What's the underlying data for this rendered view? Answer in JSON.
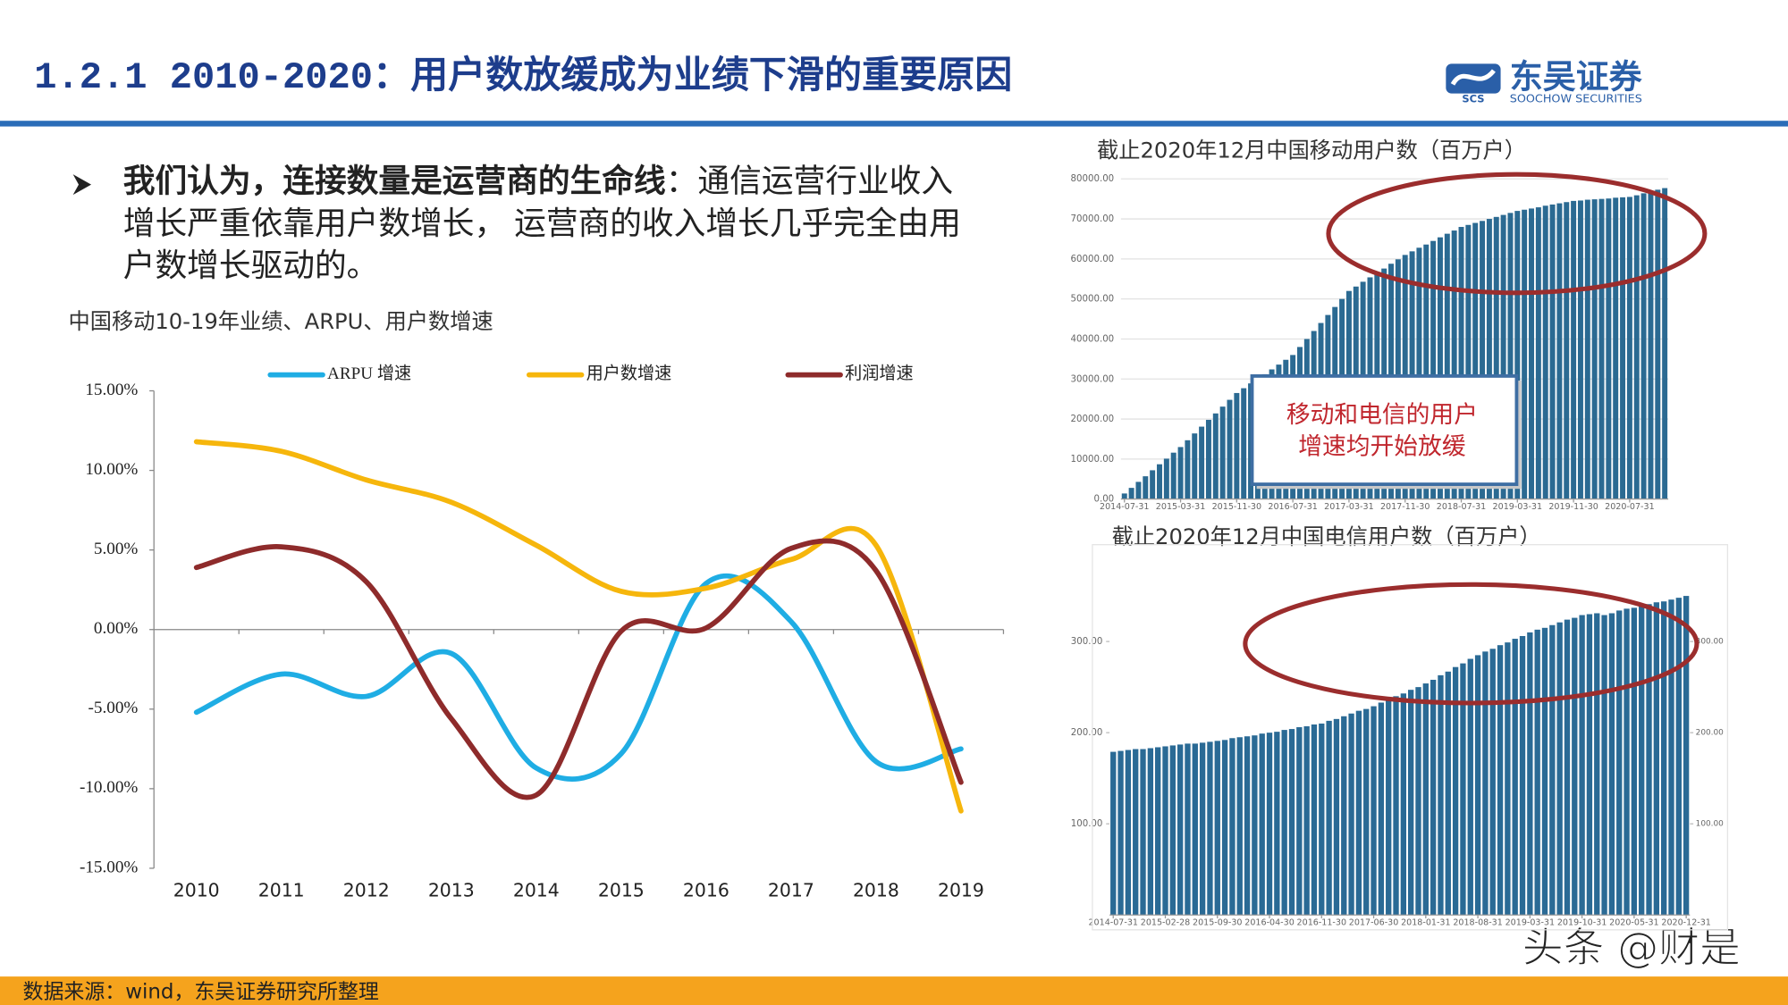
{
  "header": {
    "title": "1.2.1 2010-2020：用户数放缓成为业绩下滑的重要原因",
    "logo": {
      "mark": "SCS",
      "name": "东吴证券",
      "english": "SOOCHOW SECURITIES"
    }
  },
  "bullet": {
    "bold": "我们认为，连接数量是运营商的生命线",
    "lines": [
      "：通信运营行业收入",
      "增长严重依靠用户数增长， 运营商的收入增长几乎完全由用",
      "户数增长驱动的。"
    ]
  },
  "callout": {
    "lines": [
      "移动和电信的用户",
      "增速均开始放缓"
    ]
  },
  "source": "数据来源：wind，东吴证券研究所整理",
  "watermark": "头条 @财是",
  "chart_data": [
    {
      "type": "line",
      "title": "中国移动10-19年业绩、ARPU、用户数增速",
      "categories": [
        "2010",
        "2011",
        "2012",
        "2013",
        "2014",
        "2015",
        "2016",
        "2017",
        "2018",
        "2019"
      ],
      "series": [
        {
          "name": "ARPU 增速",
          "color": "#1fade4",
          "values": [
            -5.2,
            -2.8,
            -4.2,
            -1.5,
            -8.7,
            -7.8,
            2.9,
            0.5,
            -8.3,
            -7.5
          ]
        },
        {
          "name": "用户数增速",
          "color": "#f6b60c",
          "values": [
            11.8,
            11.2,
            9.4,
            8.0,
            5.3,
            2.4,
            2.6,
            4.4,
            5.3,
            -11.4
          ]
        },
        {
          "name": "利润增速",
          "color": "#8e2b2b",
          "values": [
            3.9,
            5.2,
            3.0,
            -5.6,
            -10.4,
            -0.1,
            0.1,
            5.1,
            3.7,
            -9.6
          ]
        }
      ],
      "ylim": [
        -15,
        15
      ],
      "yticks": [
        {
          "value": -15,
          "label": "-15.00%"
        },
        {
          "value": -10,
          "label": "-10.00%"
        },
        {
          "value": -5,
          "label": "-5.00%"
        },
        {
          "value": 0,
          "label": "0.00%"
        },
        {
          "value": 5,
          "label": "5.00%"
        },
        {
          "value": 10,
          "label": "10.00%"
        },
        {
          "value": 15,
          "label": "15.00%"
        }
      ],
      "legend": "top",
      "grid": false
    },
    {
      "type": "bar",
      "title": "截止2020年12月中国移动用户数（百万户）",
      "categories": [
        "2014-07-31",
        null,
        null,
        null,
        null,
        null,
        null,
        null,
        "2015-03-31",
        null,
        null,
        null,
        null,
        null,
        null,
        null,
        "2015-11-30",
        null,
        null,
        null,
        null,
        null,
        null,
        null,
        "2016-07-31",
        null,
        null,
        null,
        null,
        null,
        null,
        null,
        "2017-03-31",
        null,
        null,
        null,
        null,
        null,
        null,
        null,
        "2017-11-30",
        null,
        null,
        null,
        null,
        null,
        null,
        null,
        "2018-07-31",
        null,
        null,
        null,
        null,
        null,
        null,
        null,
        "2019-03-31",
        null,
        null,
        null,
        null,
        null,
        null,
        null,
        "2019-11-30",
        null,
        null,
        null,
        null,
        null,
        null,
        null,
        "2020-07-31",
        null,
        null,
        null,
        null,
        null
      ],
      "values": [
        1400,
        2800,
        4300,
        5700,
        7200,
        8700,
        10100,
        11600,
        13000,
        14700,
        16400,
        18100,
        19800,
        21400,
        23100,
        24800,
        26500,
        27700,
        28900,
        30100,
        31200,
        32400,
        33600,
        34800,
        36000,
        38000,
        40000,
        42000,
        44000,
        46000,
        48000,
        50000,
        52000,
        53100,
        54300,
        55400,
        56500,
        57600,
        58800,
        59900,
        61000,
        61900,
        62800,
        63600,
        64500,
        65400,
        66300,
        67100,
        68000,
        68500,
        69000,
        69500,
        70000,
        70500,
        71000,
        71500,
        72000,
        72300,
        72600,
        72900,
        73300,
        73600,
        73900,
        74200,
        74500,
        74600,
        74800,
        74900,
        75000,
        75100,
        75300,
        75400,
        75500,
        75900,
        76400,
        76800,
        77300,
        77700
      ],
      "color": "#2b6a92",
      "ylim": [
        0,
        80000
      ],
      "yticks": [
        {
          "value": 0,
          "label": "0.00"
        },
        {
          "value": 10000,
          "label": "10000.00"
        },
        {
          "value": 20000,
          "label": "20000.00"
        },
        {
          "value": 30000,
          "label": "30000.00"
        },
        {
          "value": 40000,
          "label": "40000.00"
        },
        {
          "value": 50000,
          "label": "50000.00"
        },
        {
          "value": 60000,
          "label": "60000.00"
        },
        {
          "value": 70000,
          "label": "70000.00"
        },
        {
          "value": 80000,
          "label": "80000.00"
        }
      ],
      "grid": true
    },
    {
      "type": "bar",
      "title": "截止2020年12月中国电信用户数（百万户）",
      "categories": [
        "2014-07-31",
        null,
        null,
        null,
        null,
        null,
        null,
        "2015-02-28",
        null,
        null,
        null,
        null,
        null,
        null,
        "2015-09-30",
        null,
        null,
        null,
        null,
        null,
        null,
        "2016-04-30",
        null,
        null,
        null,
        null,
        null,
        null,
        "2016-11-30",
        null,
        null,
        null,
        null,
        null,
        null,
        "2017-06-30",
        null,
        null,
        null,
        null,
        null,
        null,
        "2018-01-31",
        null,
        null,
        null,
        null,
        null,
        null,
        "2018-08-31",
        null,
        null,
        null,
        null,
        null,
        null,
        "2019-03-31",
        null,
        null,
        null,
        null,
        null,
        null,
        "2019-10-31",
        null,
        null,
        null,
        null,
        null,
        null,
        "2020-05-31",
        null,
        null,
        null,
        null,
        null,
        null,
        "2020-12-31"
      ],
      "values": [
        179,
        180,
        181,
        182,
        182,
        183,
        184,
        185,
        186,
        187,
        188,
        188,
        189,
        190,
        191,
        192,
        194,
        195,
        196,
        197,
        199,
        200,
        201,
        203,
        204,
        206,
        207,
        209,
        210,
        213,
        215,
        218,
        221,
        224,
        226,
        229,
        233,
        236,
        240,
        243,
        247,
        250,
        254,
        258,
        263,
        267,
        272,
        276,
        281,
        285,
        289,
        292,
        296,
        299,
        303,
        306,
        310,
        313,
        315,
        318,
        321,
        324,
        326,
        329,
        330,
        331,
        329,
        331,
        334,
        336,
        337,
        339,
        341,
        343,
        344,
        346,
        348,
        350
      ],
      "color": "#2a6a95",
      "ylim": [
        0,
        400
      ],
      "yticks": [
        {
          "value": 100,
          "label": "100.00"
        },
        {
          "value": 200,
          "label": "200.00"
        },
        {
          "value": 300,
          "label": "300.00"
        }
      ],
      "y2lim": [
        0,
        400
      ],
      "y2ticks": [
        {
          "value": 100,
          "label": "100.00"
        },
        {
          "value": 200,
          "label": "200.00"
        },
        {
          "value": 300,
          "label": "300.00"
        }
      ],
      "grid": false
    }
  ]
}
